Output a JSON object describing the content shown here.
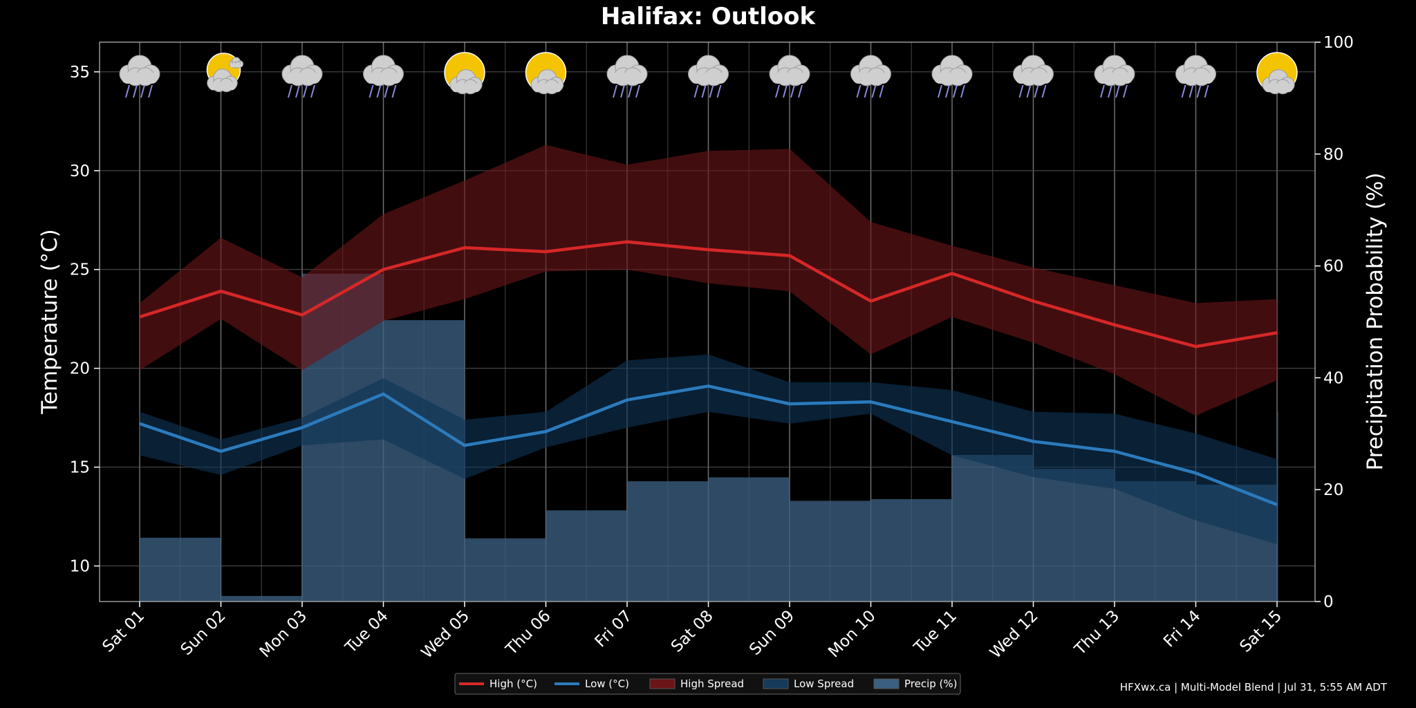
{
  "chart_data": {
    "type": "line",
    "title": "Halifax: Outlook",
    "categories": [
      "Sat 01",
      "Sun 02",
      "Mon 03",
      "Tue 04",
      "Wed 05",
      "Thu 06",
      "Fri 07",
      "Sat 08",
      "Sun 09",
      "Mon 10",
      "Tue 11",
      "Wed 12",
      "Thu 13",
      "Fri 14",
      "Sat 15"
    ],
    "ylabel": "Temperature (°C)",
    "ylabel_right": "Precipitation Probability (%)",
    "ylim": [
      8.2,
      36.5
    ],
    "ylim_right": [
      0,
      100
    ],
    "yticks": [
      10,
      15,
      20,
      25,
      30,
      35
    ],
    "yticks_right": [
      0,
      20,
      40,
      60,
      80,
      100
    ],
    "grid": true,
    "legend_position": "bottom-center",
    "series": [
      {
        "name": "High (°C)",
        "kind": "line",
        "color": "#d62728",
        "values": [
          22.6,
          23.9,
          22.7,
          25.0,
          26.1,
          25.9,
          26.4,
          26.0,
          25.7,
          23.4,
          24.8,
          23.4,
          22.2,
          21.1,
          21.8
        ]
      },
      {
        "name": "Low (°C)",
        "kind": "line",
        "color": "#2b7bbd",
        "values": [
          17.2,
          15.8,
          17.0,
          18.7,
          16.1,
          16.8,
          18.4,
          19.1,
          18.2,
          18.3,
          17.3,
          16.3,
          15.8,
          14.7,
          13.1
        ]
      },
      {
        "name": "High Spread",
        "kind": "band",
        "color": "#6b1518",
        "upper": [
          23.3,
          26.6,
          24.6,
          27.8,
          29.5,
          31.3,
          30.3,
          31.0,
          31.1,
          27.4,
          26.2,
          25.1,
          24.2,
          23.3,
          23.5
        ],
        "lower": [
          19.9,
          22.5,
          19.9,
          22.4,
          23.5,
          24.9,
          25.0,
          24.3,
          23.9,
          20.7,
          22.6,
          21.3,
          19.7,
          17.6,
          19.4
        ]
      },
      {
        "name": "Low Spread",
        "kind": "band",
        "color": "#0e2c45",
        "upper": [
          17.8,
          16.4,
          17.5,
          19.5,
          17.4,
          17.8,
          20.4,
          20.7,
          19.3,
          19.3,
          18.9,
          17.8,
          17.7,
          16.7,
          15.4
        ],
        "lower": [
          15.6,
          14.6,
          16.1,
          16.4,
          14.4,
          16.0,
          17.0,
          17.8,
          17.2,
          17.7,
          15.6,
          14.5,
          13.9,
          12.3,
          11.1
        ]
      },
      {
        "name": "Precip (%)",
        "kind": "step",
        "color": "#3b5f80",
        "axis": "right",
        "values": [
          11.4,
          1.0,
          58.6,
          50.3,
          11.3,
          16.3,
          21.5,
          22.2,
          18.0,
          18.3,
          26.2,
          23.7,
          21.5,
          20.9,
          33.9
        ]
      }
    ],
    "weather_icons": [
      "rain",
      "partly-cloudy",
      "rain",
      "rain",
      "sun-cloud",
      "sun-cloud",
      "rain",
      "rain",
      "rain",
      "rain",
      "rain",
      "rain",
      "rain",
      "rain",
      "sun-cloud"
    ]
  },
  "footer": "HFXwx.ca | Multi-Model Blend | Jul 31, 5:55 AM ADT"
}
